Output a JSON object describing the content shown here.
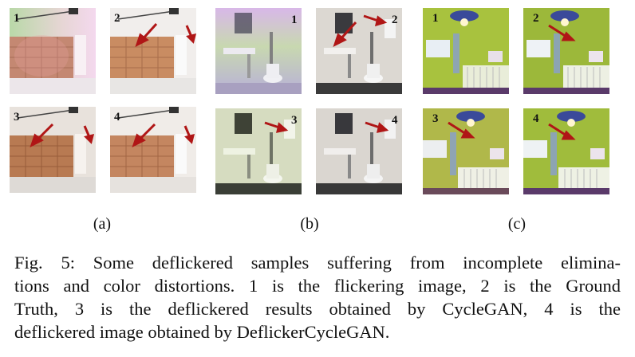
{
  "figure": {
    "panels": [
      {
        "label": "(a)",
        "scene": "garage",
        "tiles": [
          "1",
          "2",
          "3",
          "4"
        ]
      },
      {
        "label": "(b)",
        "scene": "bathroom",
        "tiles": [
          "1",
          "2",
          "3",
          "4"
        ]
      },
      {
        "label": "(c)",
        "scene": "nursery",
        "tiles": [
          "1",
          "2",
          "3",
          "4"
        ]
      }
    ]
  },
  "caption": {
    "lines": [
      "Fig. 5: Some deflickered samples suffering from incomplete elimina-",
      "tions and color distortions. 1 is the flickering image, 2 is the Ground",
      "Truth, 3 is the deflickered results obtained by CycleGAN, 4 is the",
      "deflickered image obtained by DeflickerCycleGAN."
    ]
  },
  "colors": {
    "arrow": "#b01616",
    "garage_door": "#c98c62",
    "bath_wall": "#dcd8d2",
    "nursery_wall": "#9cb83a"
  }
}
